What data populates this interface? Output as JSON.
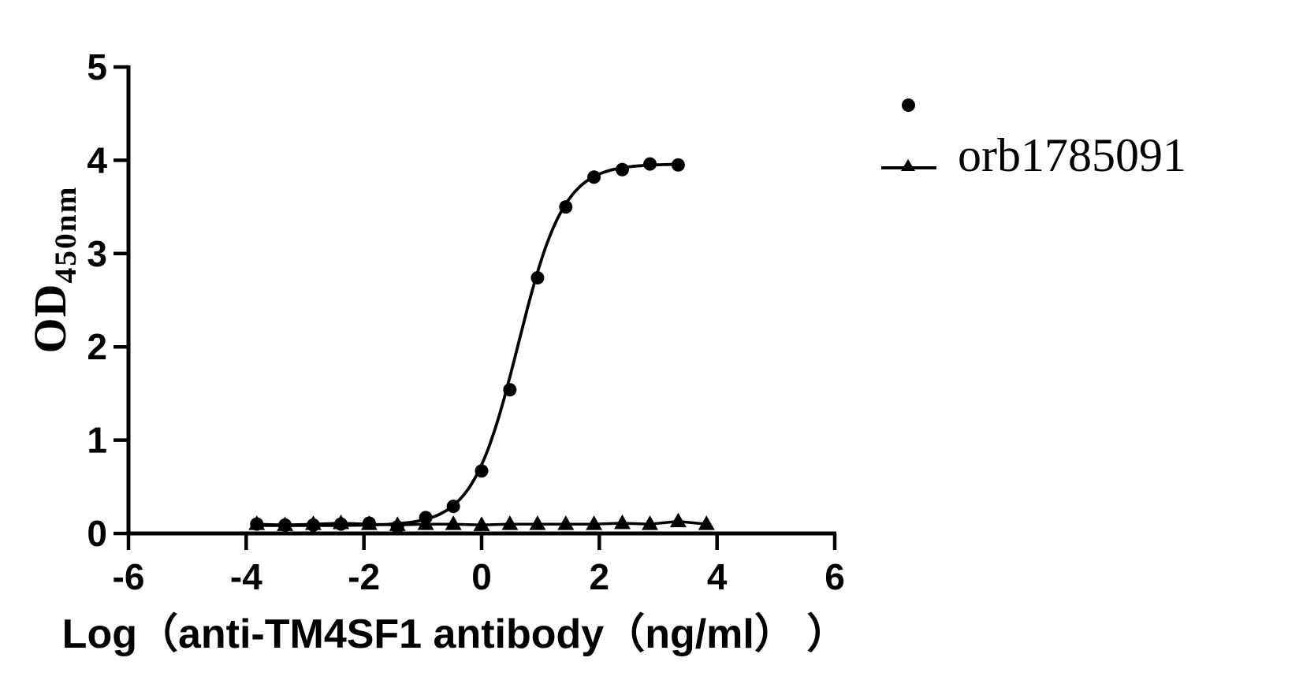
{
  "figure": {
    "background_color": "#ffffff",
    "ink_color": "#000000"
  },
  "chart_data": {
    "type": "line",
    "title": "",
    "xlabel": "Log（anti-TM4SF1 antibody（ng/ml） ）",
    "ylabel": "OD",
    "ylabel_sub": "450nm",
    "xlim": [
      -6,
      6
    ],
    "ylim": [
      0,
      5
    ],
    "xticks": [
      -6,
      -4,
      -2,
      0,
      2,
      4,
      6
    ],
    "yticks": [
      0,
      1,
      2,
      3,
      4,
      5
    ],
    "grid": false,
    "legend": {
      "label": "orb1785091",
      "position": "top-right",
      "entries": [
        {
          "marker": "circle",
          "line": false
        },
        {
          "marker": "triangle",
          "line": true,
          "label": "orb1785091"
        }
      ]
    },
    "series": [
      {
        "name": "circle-series",
        "marker": "circle",
        "color": "#000000",
        "x": [
          -3.82,
          -3.34,
          -2.86,
          -2.39,
          -1.91,
          -1.43,
          -0.95,
          -0.48,
          0.0,
          0.48,
          0.95,
          1.43,
          1.91,
          2.39,
          2.86,
          3.34
        ],
        "y": [
          0.1,
          0.09,
          0.09,
          0.1,
          0.11,
          0.07,
          0.17,
          0.29,
          0.67,
          1.54,
          2.74,
          3.5,
          3.82,
          3.9,
          3.96,
          3.95
        ],
        "fit": {
          "model": "4PL",
          "bottom": 0.085,
          "top": 3.96,
          "logEC50": 0.62,
          "hill": 1.12
        }
      },
      {
        "name": "triangle-series",
        "marker": "triangle",
        "color": "#000000",
        "x": [
          -3.82,
          -3.34,
          -2.86,
          -2.39,
          -1.91,
          -1.43,
          -0.95,
          -0.48,
          0.0,
          0.48,
          0.95,
          1.43,
          1.91,
          2.39,
          2.86,
          3.34,
          3.82
        ],
        "y": [
          0.1,
          0.09,
          0.1,
          0.11,
          0.1,
          0.09,
          0.1,
          0.1,
          0.09,
          0.1,
          0.1,
          0.1,
          0.1,
          0.11,
          0.1,
          0.13,
          0.1
        ]
      }
    ]
  }
}
